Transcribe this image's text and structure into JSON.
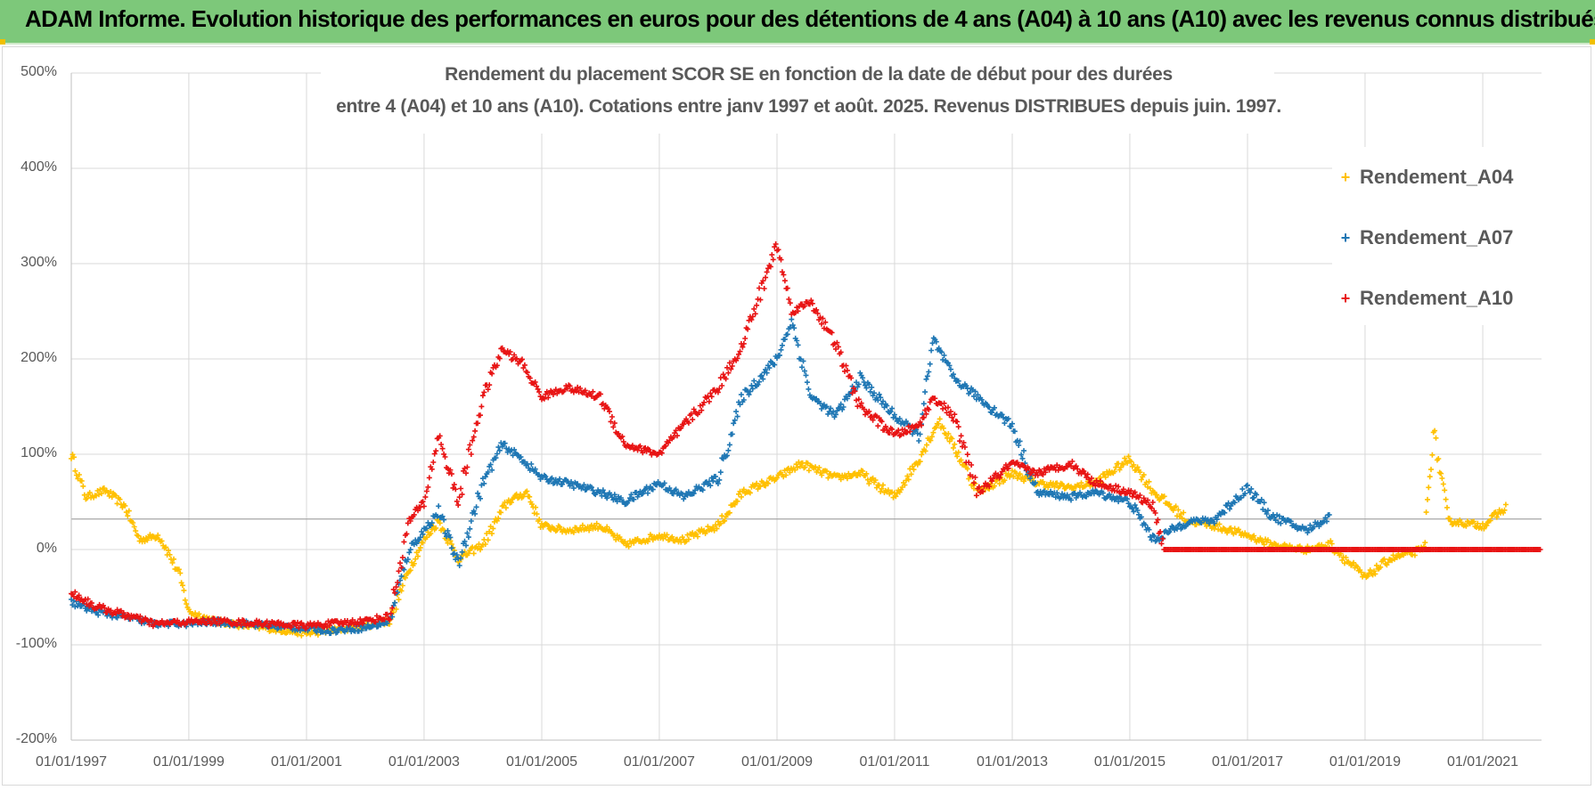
{
  "header": {
    "text": "ADAM Informe. Evolution historique des performances en euros pour des détentions de 4 ans (A04) à 10 ans (A10) avec les revenus connus distribués"
  },
  "colors": {
    "banner": "#7dc87a",
    "A04": "#ffc000",
    "A07": "#1f77b4",
    "A10": "#e81414"
  },
  "chart_data": {
    "type": "scatter",
    "title_line1": "Rendement du placement SCOR SE en fonction de la date de début pour des durées",
    "title_line2": "entre 4 (A04) et 10 ans (A10). Cotations entre janv 1997 et août. 2025. Revenus DISTRIBUES depuis juin. 1997.",
    "xlabel": "",
    "ylabel": "",
    "x_range": [
      "1997-01-01",
      "2022-01-01"
    ],
    "y_range": [
      -200,
      500
    ],
    "y_ticks": [
      "-200%",
      "-100%",
      "0%",
      "100%",
      "200%",
      "300%",
      "400%",
      "500%"
    ],
    "x_ticks": [
      "01/01/1997",
      "01/01/1999",
      "01/01/2001",
      "01/01/2003",
      "01/01/2005",
      "01/01/2007",
      "01/01/2009",
      "01/01/2011",
      "01/01/2013",
      "01/01/2015",
      "01/01/2017",
      "01/01/2019",
      "01/01/2021"
    ],
    "reference_line_y": 32,
    "grid": true,
    "legend_position": "top-right",
    "marker": "+",
    "series": [
      {
        "name": "Rendement_A04",
        "color": "#ffc000",
        "points": [
          [
            "1997-01-01",
            100
          ],
          [
            "1997-04-01",
            55
          ],
          [
            "1997-08-01",
            62
          ],
          [
            "1997-12-01",
            45
          ],
          [
            "1998-03-01",
            10
          ],
          [
            "1998-07-01",
            15
          ],
          [
            "1998-11-01",
            -25
          ],
          [
            "1999-01-01",
            -65
          ],
          [
            "1999-06-01",
            -75
          ],
          [
            "2000-01-01",
            -80
          ],
          [
            "2000-06-01",
            -83
          ],
          [
            "2001-01-01",
            -88
          ],
          [
            "2001-06-01",
            -85
          ],
          [
            "2002-01-01",
            -80
          ],
          [
            "2002-06-01",
            -75
          ],
          [
            "2002-10-01",
            -20
          ],
          [
            "2003-01-01",
            10
          ],
          [
            "2003-04-01",
            30
          ],
          [
            "2003-08-01",
            -10
          ],
          [
            "2004-01-01",
            5
          ],
          [
            "2004-06-01",
            50
          ],
          [
            "2004-10-01",
            60
          ],
          [
            "2005-01-01",
            25
          ],
          [
            "2005-06-01",
            20
          ],
          [
            "2006-01-01",
            25
          ],
          [
            "2006-06-01",
            5
          ],
          [
            "2007-01-01",
            15
          ],
          [
            "2007-06-01",
            10
          ],
          [
            "2008-01-01",
            25
          ],
          [
            "2008-06-01",
            60
          ],
          [
            "2009-01-01",
            75
          ],
          [
            "2009-06-01",
            90
          ],
          [
            "2010-01-01",
            75
          ],
          [
            "2010-06-01",
            80
          ],
          [
            "2011-01-01",
            55
          ],
          [
            "2011-06-01",
            95
          ],
          [
            "2011-10-01",
            135
          ],
          [
            "2012-01-01",
            110
          ],
          [
            "2012-06-01",
            60
          ],
          [
            "2013-01-01",
            80
          ],
          [
            "2013-06-01",
            70
          ],
          [
            "2014-01-01",
            65
          ],
          [
            "2014-06-01",
            70
          ],
          [
            "2015-01-01",
            95
          ],
          [
            "2015-06-01",
            60
          ],
          [
            "2016-01-01",
            30
          ],
          [
            "2016-06-01",
            25
          ],
          [
            "2017-01-01",
            15
          ],
          [
            "2017-06-01",
            5
          ],
          [
            "2018-01-01",
            0
          ],
          [
            "2018-06-01",
            5
          ],
          [
            "2019-01-01",
            -30
          ],
          [
            "2019-06-01",
            -10
          ],
          [
            "2020-01-01",
            0
          ],
          [
            "2020-03-01",
            125
          ],
          [
            "2020-06-01",
            30
          ],
          [
            "2021-01-01",
            25
          ],
          [
            "2021-06-01",
            45
          ]
        ]
      },
      {
        "name": "Rendement_A07",
        "color": "#1f77b4",
        "points": [
          [
            "1997-01-01",
            -55
          ],
          [
            "1997-06-01",
            -65
          ],
          [
            "1998-01-01",
            -72
          ],
          [
            "1998-06-01",
            -78
          ],
          [
            "1999-01-01",
            -78
          ],
          [
            "1999-06-01",
            -76
          ],
          [
            "2000-01-01",
            -78
          ],
          [
            "2000-06-01",
            -80
          ],
          [
            "2001-01-01",
            -83
          ],
          [
            "2001-06-01",
            -85
          ],
          [
            "2002-01-01",
            -82
          ],
          [
            "2002-06-01",
            -75
          ],
          [
            "2002-10-01",
            0
          ],
          [
            "2003-01-01",
            20
          ],
          [
            "2003-04-01",
            40
          ],
          [
            "2003-08-01",
            -15
          ],
          [
            "2004-01-01",
            70
          ],
          [
            "2004-05-01",
            110
          ],
          [
            "2004-09-01",
            95
          ],
          [
            "2005-01-01",
            75
          ],
          [
            "2005-06-01",
            70
          ],
          [
            "2006-01-01",
            60
          ],
          [
            "2006-06-01",
            50
          ],
          [
            "2007-01-01",
            70
          ],
          [
            "2007-06-01",
            55
          ],
          [
            "2008-01-01",
            75
          ],
          [
            "2008-06-01",
            160
          ],
          [
            "2009-01-01",
            200
          ],
          [
            "2009-04-01",
            240
          ],
          [
            "2009-08-01",
            160
          ],
          [
            "2010-01-01",
            140
          ],
          [
            "2010-06-01",
            180
          ],
          [
            "2011-01-01",
            140
          ],
          [
            "2011-06-01",
            120
          ],
          [
            "2011-09-01",
            220
          ],
          [
            "2012-01-01",
            180
          ],
          [
            "2012-06-01",
            160
          ],
          [
            "2013-01-01",
            130
          ],
          [
            "2013-06-01",
            60
          ],
          [
            "2014-01-01",
            55
          ],
          [
            "2014-06-01",
            60
          ],
          [
            "2015-01-01",
            50
          ],
          [
            "2015-06-01",
            10
          ],
          [
            "2016-01-01",
            30
          ],
          [
            "2016-06-01",
            30
          ],
          [
            "2017-01-01",
            65
          ],
          [
            "2017-06-01",
            35
          ],
          [
            "2018-01-01",
            20
          ],
          [
            "2018-06-01",
            35
          ]
        ]
      },
      {
        "name": "Rendement_A10",
        "color": "#e81414",
        "points": [
          [
            "1997-01-01",
            -45
          ],
          [
            "1997-06-01",
            -60
          ],
          [
            "1998-01-01",
            -70
          ],
          [
            "1998-06-01",
            -78
          ],
          [
            "1999-01-01",
            -76
          ],
          [
            "1999-06-01",
            -75
          ],
          [
            "2000-01-01",
            -77
          ],
          [
            "2000-06-01",
            -78
          ],
          [
            "2001-01-01",
            -80
          ],
          [
            "2001-06-01",
            -78
          ],
          [
            "2002-01-01",
            -75
          ],
          [
            "2002-06-01",
            -70
          ],
          [
            "2002-10-01",
            30
          ],
          [
            "2003-01-01",
            50
          ],
          [
            "2003-04-01",
            120
          ],
          [
            "2003-08-01",
            50
          ],
          [
            "2004-01-01",
            160
          ],
          [
            "2004-05-01",
            210
          ],
          [
            "2004-09-01",
            195
          ],
          [
            "2005-01-01",
            160
          ],
          [
            "2005-06-01",
            170
          ],
          [
            "2006-01-01",
            160
          ],
          [
            "2006-06-01",
            110
          ],
          [
            "2007-01-01",
            100
          ],
          [
            "2007-06-01",
            130
          ],
          [
            "2008-01-01",
            170
          ],
          [
            "2008-06-01",
            215
          ],
          [
            "2009-01-01",
            320
          ],
          [
            "2009-04-01",
            250
          ],
          [
            "2009-08-01",
            260
          ],
          [
            "2010-01-01",
            215
          ],
          [
            "2010-06-01",
            150
          ],
          [
            "2011-01-01",
            120
          ],
          [
            "2011-06-01",
            130
          ],
          [
            "2011-09-01",
            160
          ],
          [
            "2012-01-01",
            140
          ],
          [
            "2012-06-01",
            60
          ],
          [
            "2013-01-01",
            90
          ],
          [
            "2013-06-01",
            80
          ],
          [
            "2014-01-01",
            90
          ],
          [
            "2014-06-01",
            70
          ],
          [
            "2015-01-01",
            60
          ],
          [
            "2015-06-01",
            45
          ],
          [
            "2015-08-01",
            0
          ],
          [
            "2022-01-01",
            0
          ]
        ]
      }
    ]
  }
}
